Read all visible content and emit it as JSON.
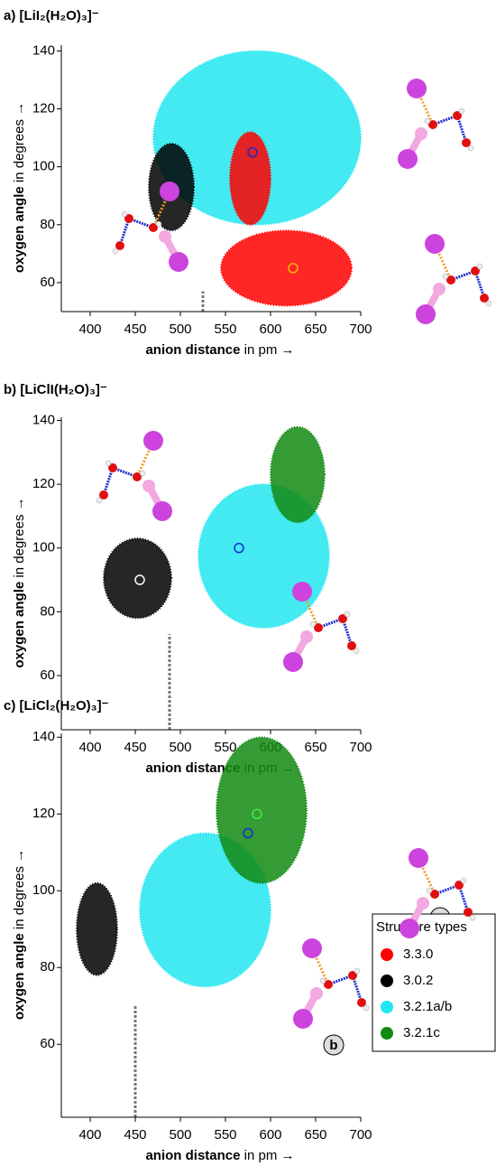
{
  "chart_data": [
    {
      "type": "cloud",
      "title": "a) [LiI₂(H₂O)₃]⁻",
      "x_label_bold": "anion distance",
      "x_label_rest": "in pm →",
      "y_label_bold": "oxygen angle",
      "y_label_rest": "in degrees →",
      "xlim": [
        368,
        700
      ],
      "ylim": [
        50,
        142
      ],
      "xticks": [
        400,
        450,
        500,
        550,
        600,
        650,
        700
      ],
      "yticks": [
        60,
        80,
        100,
        120,
        140
      ],
      "threshold": {
        "x": 525,
        "y_top": 57
      },
      "clouds": [
        {
          "structure": "3.2.1a/b",
          "x_extent": [
            470,
            700
          ],
          "y_extent": [
            80,
            140
          ],
          "marker": {
            "x": 580,
            "y": 105
          }
        },
        {
          "structure": "3.3.0",
          "x_extent": [
            555,
            600
          ],
          "y_extent": [
            80,
            112
          ]
        },
        {
          "structure": "3.3.0",
          "x_extent": [
            545,
            690
          ],
          "y_extent": [
            52,
            78
          ],
          "marker": {
            "x": 625,
            "y": 65
          }
        },
        {
          "structure": "3.0.2",
          "x_extent": [
            465,
            515
          ],
          "y_extent": [
            78,
            108
          ],
          "marker": {
            "x": 490,
            "y": 90
          }
        }
      ]
    },
    {
      "type": "cloud",
      "title": "b) [LiClI(H₂O)₃]⁻",
      "x_label_bold": "anion distance",
      "x_label_rest": "in pm →",
      "y_label_bold": "oxygen angle",
      "y_label_rest": "in degrees →",
      "xlim": [
        368,
        700
      ],
      "ylim": [
        43,
        141
      ],
      "xticks": [
        400,
        450,
        500,
        550,
        600,
        650,
        700
      ],
      "yticks": [
        60,
        80,
        100,
        120,
        140
      ],
      "threshold": {
        "x": 488,
        "y_top": 73
      },
      "clouds": [
        {
          "structure": "3.2.1a/b",
          "x_extent": [
            520,
            665
          ],
          "y_extent": [
            75,
            120
          ],
          "marker": {
            "x": 565,
            "y": 100
          }
        },
        {
          "structure": "3.2.1c",
          "x_extent": [
            600,
            660
          ],
          "y_extent": [
            108,
            138
          ]
        },
        {
          "structure": "3.0.2",
          "x_extent": [
            415,
            490
          ],
          "y_extent": [
            78,
            103
          ],
          "marker": {
            "x": 455,
            "y": 90
          }
        }
      ]
    },
    {
      "type": "cloud",
      "title": "c) [LiCl₂(H₂O)₃]⁻",
      "x_label_bold": "anion distance",
      "x_label_rest": "in pm →",
      "y_label_bold": "oxygen angle",
      "y_label_rest": "in degrees →",
      "xlim": [
        368,
        700
      ],
      "ylim": [
        41,
        141
      ],
      "xticks": [
        400,
        450,
        500,
        550,
        600,
        650,
        700
      ],
      "yticks": [
        60,
        80,
        100,
        120,
        140
      ],
      "threshold": {
        "x": 450,
        "y_top": 70
      },
      "clouds": [
        {
          "structure": "3.2.1a/b",
          "x_extent": [
            455,
            600
          ],
          "y_extent": [
            75,
            115
          ],
          "marker": {
            "x": 575,
            "y": 115
          }
        },
        {
          "structure": "3.2.1c",
          "x_extent": [
            540,
            640
          ],
          "y_extent": [
            102,
            140
          ],
          "marker": {
            "x": 585,
            "y": 120
          }
        },
        {
          "structure": "3.0.2",
          "x_extent": [
            385,
            430
          ],
          "y_extent": [
            78,
            102
          ]
        }
      ],
      "annotations": [
        "b",
        "c"
      ],
      "legend_title": "Structure types",
      "legend": [
        {
          "name": "3.3.0",
          "color": "#ff0000"
        },
        {
          "name": "3.0.2",
          "color": "#000000"
        },
        {
          "name": "3.2.1a/b",
          "color": "#22e6f0"
        },
        {
          "name": "3.2.1c",
          "color": "#128a12"
        }
      ]
    }
  ]
}
